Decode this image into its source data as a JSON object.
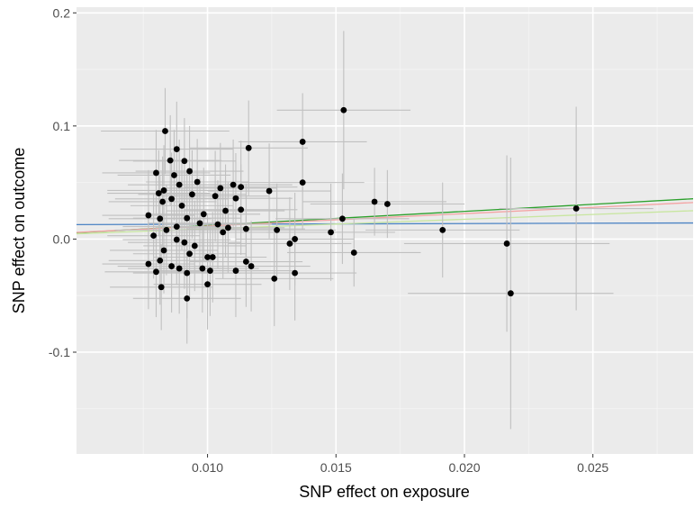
{
  "chart_data": {
    "type": "scatter",
    "title": "",
    "xlabel": "SNP effect on exposure",
    "ylabel": "SNP effect on outcome",
    "xlim": [
      0.0049,
      0.0289
    ],
    "ylim": [
      -0.19,
      0.205
    ],
    "x_ticks": [
      {
        "value": 0.01,
        "label": "0.010"
      },
      {
        "value": 0.015,
        "label": "0.015"
      },
      {
        "value": 0.02,
        "label": "0.020"
      },
      {
        "value": 0.025,
        "label": "0.025"
      }
    ],
    "y_ticks": [
      {
        "value": 0.2,
        "label": "0.2"
      },
      {
        "value": 0.1,
        "label": "0.1"
      },
      {
        "value": 0.0,
        "label": "0.0"
      },
      {
        "value": -0.1,
        "label": "-0.1"
      }
    ],
    "grid": true,
    "panel_background": "#ebebeb",
    "errorbar_color": "#c0c0c0",
    "point_color": "#000000",
    "points": [
      {
        "x": 0.00835,
        "y": 0.0955,
        "x_err": 0.0025,
        "y_err": 0.038
      },
      {
        "x": 0.0088,
        "y": 0.0795,
        "x_err": 0.0022,
        "y_err": 0.042
      },
      {
        "x": 0.00855,
        "y": 0.0695,
        "x_err": 0.002,
        "y_err": 0.04
      },
      {
        "x": 0.0091,
        "y": 0.069,
        "x_err": 0.002,
        "y_err": 0.038
      },
      {
        "x": 0.0093,
        "y": 0.06,
        "x_err": 0.0021,
        "y_err": 0.04
      },
      {
        "x": 0.008,
        "y": 0.0585,
        "x_err": 0.0021,
        "y_err": 0.038
      },
      {
        "x": 0.0087,
        "y": 0.0565,
        "x_err": 0.0022,
        "y_err": 0.04
      },
      {
        "x": 0.0096,
        "y": 0.0505,
        "x_err": 0.002,
        "y_err": 0.038
      },
      {
        "x": 0.0089,
        "y": 0.048,
        "x_err": 0.002,
        "y_err": 0.04
      },
      {
        "x": 0.0083,
        "y": 0.043,
        "x_err": 0.0022,
        "y_err": 0.04
      },
      {
        "x": 0.0081,
        "y": 0.0405,
        "x_err": 0.002,
        "y_err": 0.038
      },
      {
        "x": 0.0094,
        "y": 0.0395,
        "x_err": 0.0021,
        "y_err": 0.039
      },
      {
        "x": 0.0086,
        "y": 0.0355,
        "x_err": 0.0022,
        "y_err": 0.041
      },
      {
        "x": 0.00825,
        "y": 0.033,
        "x_err": 0.0021,
        "y_err": 0.04
      },
      {
        "x": 0.009,
        "y": 0.0295,
        "x_err": 0.002,
        "y_err": 0.039
      },
      {
        "x": 0.0077,
        "y": 0.021,
        "x_err": 0.0018,
        "y_err": 0.04
      },
      {
        "x": 0.00815,
        "y": 0.018,
        "x_err": 0.002,
        "y_err": 0.038
      },
      {
        "x": 0.0092,
        "y": 0.0185,
        "x_err": 0.0021,
        "y_err": 0.04
      },
      {
        "x": 0.00985,
        "y": 0.022,
        "x_err": 0.0022,
        "y_err": 0.041
      },
      {
        "x": 0.0097,
        "y": 0.014,
        "x_err": 0.002,
        "y_err": 0.04
      },
      {
        "x": 0.0088,
        "y": 0.011,
        "x_err": 0.0021,
        "y_err": 0.039
      },
      {
        "x": 0.0084,
        "y": 0.008,
        "x_err": 0.002,
        "y_err": 0.04
      },
      {
        "x": 0.0079,
        "y": 0.003,
        "x_err": 0.0018,
        "y_err": 0.038
      },
      {
        "x": 0.0088,
        "y": -0.0005,
        "x_err": 0.0021,
        "y_err": 0.04
      },
      {
        "x": 0.0091,
        "y": -0.003,
        "x_err": 0.0022,
        "y_err": 0.041
      },
      {
        "x": 0.0095,
        "y": -0.006,
        "x_err": 0.002,
        "y_err": 0.04
      },
      {
        "x": 0.0083,
        "y": -0.01,
        "x_err": 0.0021,
        "y_err": 0.038
      },
      {
        "x": 0.0093,
        "y": -0.013,
        "x_err": 0.0022,
        "y_err": 0.04
      },
      {
        "x": 0.00815,
        "y": -0.019,
        "x_err": 0.002,
        "y_err": 0.039
      },
      {
        "x": 0.0077,
        "y": -0.022,
        "x_err": 0.0018,
        "y_err": 0.04
      },
      {
        "x": 0.0086,
        "y": -0.024,
        "x_err": 0.0021,
        "y_err": 0.041
      },
      {
        "x": 0.0089,
        "y": -0.026,
        "x_err": 0.002,
        "y_err": 0.04
      },
      {
        "x": 0.0098,
        "y": -0.026,
        "x_err": 0.0022,
        "y_err": 0.039
      },
      {
        "x": 0.008,
        "y": -0.029,
        "x_err": 0.002,
        "y_err": 0.04
      },
      {
        "x": 0.0092,
        "y": -0.03,
        "x_err": 0.0021,
        "y_err": 0.04
      },
      {
        "x": 0.0082,
        "y": -0.0425,
        "x_err": 0.002,
        "y_err": 0.038
      },
      {
        "x": 0.0092,
        "y": -0.0525,
        "x_err": 0.0021,
        "y_err": 0.04
      },
      {
        "x": 0.0105,
        "y": 0.045,
        "x_err": 0.0022,
        "y_err": 0.04
      },
      {
        "x": 0.011,
        "y": 0.048,
        "x_err": 0.0023,
        "y_err": 0.04
      },
      {
        "x": 0.0113,
        "y": 0.046,
        "x_err": 0.0022,
        "y_err": 0.041
      },
      {
        "x": 0.0103,
        "y": 0.038,
        "x_err": 0.0021,
        "y_err": 0.04
      },
      {
        "x": 0.0111,
        "y": 0.036,
        "x_err": 0.0022,
        "y_err": 0.04
      },
      {
        "x": 0.0107,
        "y": 0.025,
        "x_err": 0.0023,
        "y_err": 0.041
      },
      {
        "x": 0.0113,
        "y": 0.026,
        "x_err": 0.0022,
        "y_err": 0.04
      },
      {
        "x": 0.0104,
        "y": 0.013,
        "x_err": 0.0021,
        "y_err": 0.039
      },
      {
        "x": 0.0108,
        "y": 0.01,
        "x_err": 0.0022,
        "y_err": 0.04
      },
      {
        "x": 0.0115,
        "y": 0.009,
        "x_err": 0.0023,
        "y_err": 0.04
      },
      {
        "x": 0.0106,
        "y": 0.006,
        "x_err": 0.0022,
        "y_err": 0.041
      },
      {
        "x": 0.0102,
        "y": -0.016,
        "x_err": 0.0021,
        "y_err": 0.04
      },
      {
        "x": 0.01,
        "y": -0.016,
        "x_err": 0.0021,
        "y_err": 0.039
      },
      {
        "x": 0.0115,
        "y": -0.02,
        "x_err": 0.0022,
        "y_err": 0.04
      },
      {
        "x": 0.0117,
        "y": -0.024,
        "x_err": 0.0023,
        "y_err": 0.04
      },
      {
        "x": 0.0101,
        "y": -0.028,
        "x_err": 0.0021,
        "y_err": 0.04
      },
      {
        "x": 0.0111,
        "y": -0.028,
        "x_err": 0.0022,
        "y_err": 0.041
      },
      {
        "x": 0.01,
        "y": -0.04,
        "x_err": 0.0021,
        "y_err": 0.04
      },
      {
        "x": 0.0116,
        "y": 0.0805,
        "x_err": 0.0023,
        "y_err": 0.042
      },
      {
        "x": 0.0124,
        "y": 0.0425,
        "x_err": 0.0024,
        "y_err": 0.042
      },
      {
        "x": 0.0127,
        "y": 0.008,
        "x_err": 0.0023,
        "y_err": 0.041
      },
      {
        "x": 0.0126,
        "y": -0.035,
        "x_err": 0.0023,
        "y_err": 0.042
      },
      {
        "x": 0.0132,
        "y": -0.004,
        "x_err": 0.0024,
        "y_err": 0.041
      },
      {
        "x": 0.0134,
        "y": 0.0,
        "x_err": 0.0023,
        "y_err": 0.041
      },
      {
        "x": 0.0134,
        "y": -0.03,
        "x_err": 0.0024,
        "y_err": 0.042
      },
      {
        "x": 0.0137,
        "y": 0.086,
        "x_err": 0.0025,
        "y_err": 0.043
      },
      {
        "x": 0.0137,
        "y": 0.05,
        "x_err": 0.0024,
        "y_err": 0.042
      },
      {
        "x": 0.0148,
        "y": 0.006,
        "x_err": 0.0025,
        "y_err": 0.043
      },
      {
        "x": 0.0153,
        "y": 0.114,
        "x_err": 0.0026,
        "y_err": 0.07
      },
      {
        "x": 0.01525,
        "y": 0.018,
        "x_err": 0.0026,
        "y_err": 0.04
      },
      {
        "x": 0.0157,
        "y": -0.012,
        "x_err": 0.0026,
        "y_err": 0.03
      },
      {
        "x": 0.0165,
        "y": 0.033,
        "x_err": 0.0028,
        "y_err": 0.03
      },
      {
        "x": 0.017,
        "y": 0.031,
        "x_err": 0.003,
        "y_err": 0.03
      },
      {
        "x": 0.01915,
        "y": 0.008,
        "x_err": 0.003,
        "y_err": 0.042
      },
      {
        "x": 0.02165,
        "y": -0.004,
        "x_err": 0.004,
        "y_err": 0.078
      },
      {
        "x": 0.0218,
        "y": -0.048,
        "x_err": 0.004,
        "y_err": 0.12
      },
      {
        "x": 0.02435,
        "y": 0.027,
        "x_err": 0.003,
        "y_err": 0.09
      }
    ],
    "lines": [
      {
        "color": "#4b83c4",
        "slope": 0.06,
        "intercept": 0.0125
      },
      {
        "color": "#2ca02c",
        "slope": 1.25,
        "intercept": -0.0005
      },
      {
        "color": "#f4a3a3",
        "slope": 1.1,
        "intercept": 0.0005
      },
      {
        "color": "#c8e6a0",
        "slope": 0.85,
        "intercept": 0.0005
      }
    ]
  }
}
